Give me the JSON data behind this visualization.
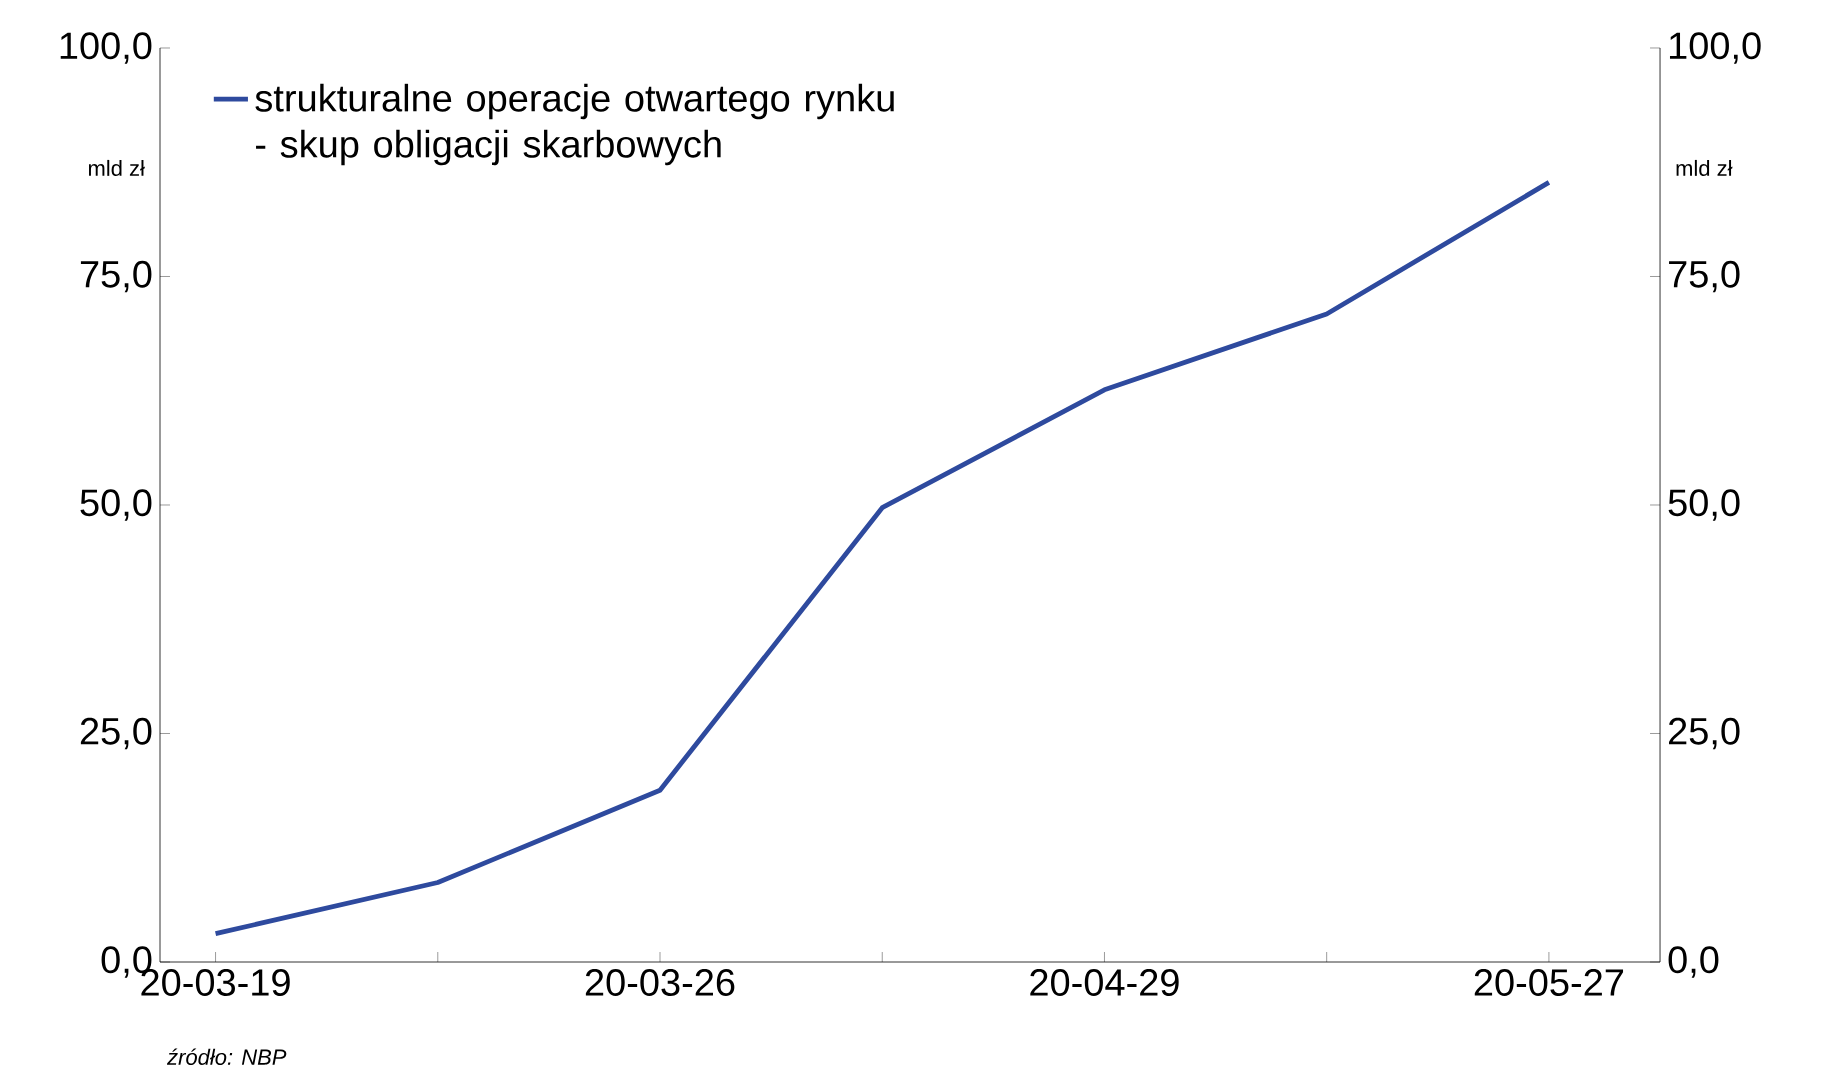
{
  "chart_data": {
    "type": "line",
    "categories": [
      "20-03-19",
      null,
      "20-03-26",
      null,
      "20-04-29",
      null,
      "20-05-27"
    ],
    "series": [
      {
        "name": "strukturalne operacje otwartego rynku - skup obligacji skarbowych",
        "color": "#2e4a9e",
        "values": [
          3.1,
          8.7,
          18.8,
          49.7,
          62.6,
          70.9,
          85.3
        ]
      }
    ],
    "ylim": [
      0,
      100
    ],
    "yticks": [
      {
        "value": 0,
        "label": "0,0"
      },
      {
        "value": 25,
        "label": "25,0"
      },
      {
        "value": 50,
        "label": "50,0"
      },
      {
        "value": 75,
        "label": "75,0"
      },
      {
        "value": 100,
        "label": "100,0"
      }
    ],
    "y2lim": [
      0,
      100
    ],
    "y2ticks": [
      {
        "value": 0,
        "label": "0,0"
      },
      {
        "value": 25,
        "label": "25,0"
      },
      {
        "value": 50,
        "label": "50,0"
      },
      {
        "value": 75,
        "label": "75,0"
      },
      {
        "value": 100,
        "label": "100,0"
      }
    ],
    "annotations": [
      "źródło: NBP",
      "mld zł",
      "mld zł"
    ],
    "legend": "top left",
    "grid": false,
    "marker": "none",
    "line_style": "solid"
  }
}
